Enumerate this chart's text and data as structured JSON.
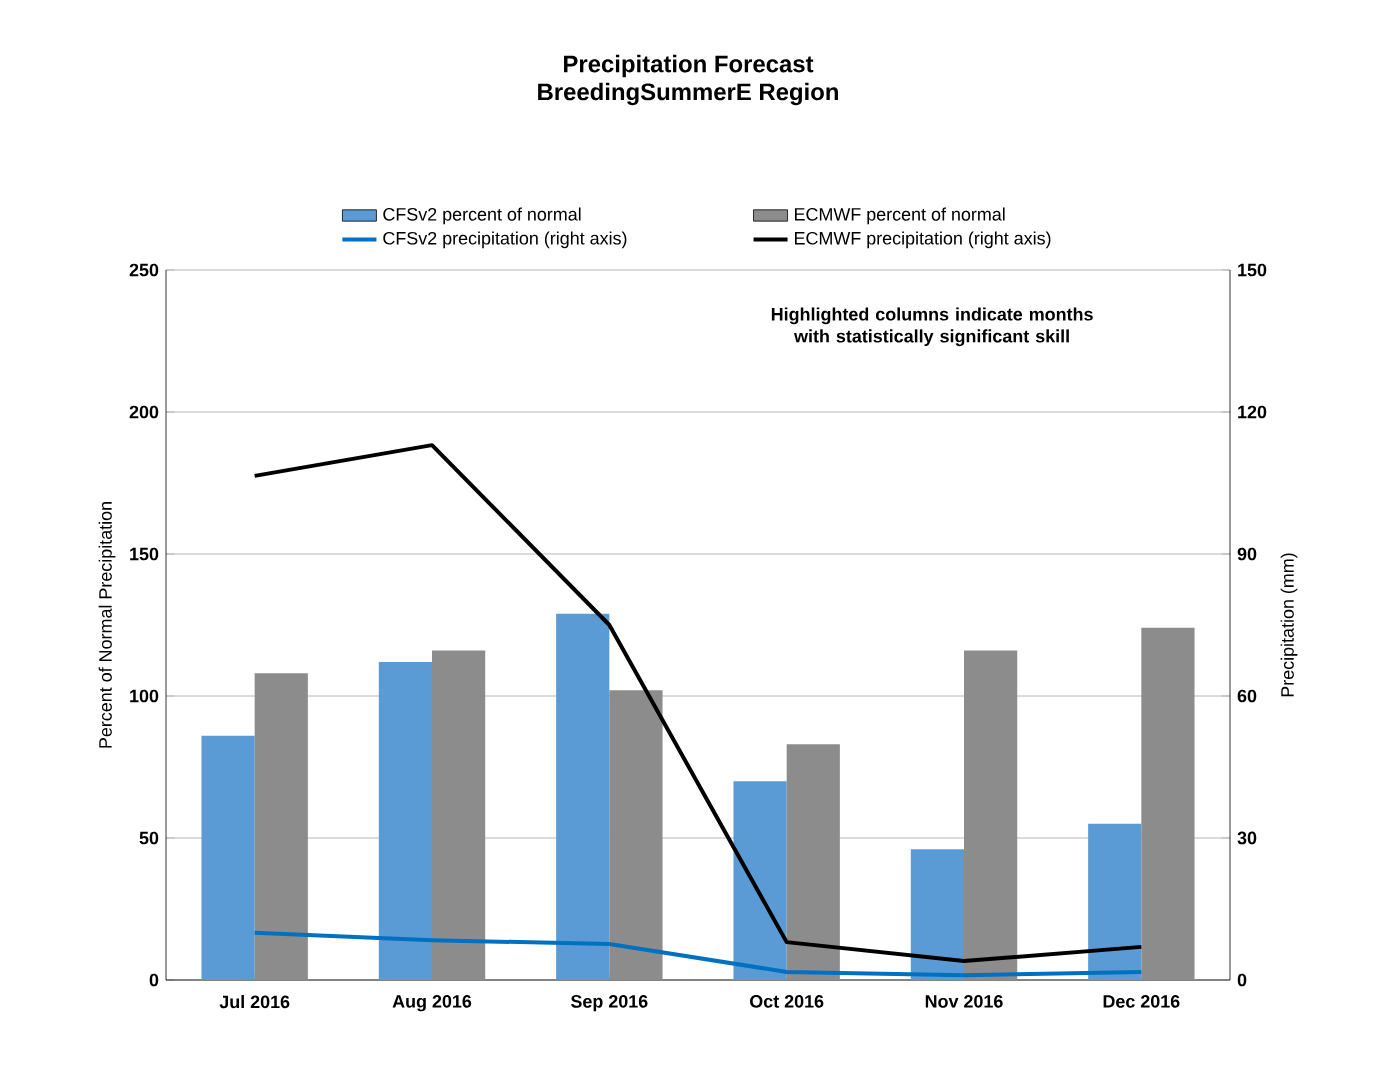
{
  "chart_data": {
    "type": "bar",
    "title": "Precipitation Forecast",
    "subtitle": "BreedingSummerE Region",
    "ylabel": "Percent of Normal Precipitation",
    "y2label": "Precipitation (mm)",
    "categories": [
      "Jul 2016",
      "Aug 2016",
      "Sep 2016",
      "Oct 2016",
      "Nov 2016",
      "Dec 2016"
    ],
    "series": [
      {
        "name": "CFSv2 percent of normal",
        "color": "#5b9bd5",
        "values": [
          86,
          112,
          129,
          70,
          46,
          55
        ]
      },
      {
        "name": "ECMWF percent of normal",
        "color": "#8c8c8c",
        "values": [
          108,
          116,
          102,
          83,
          116,
          124
        ]
      },
      {
        "name": "CFSv2 precipitation (right axis)",
        "type": "line",
        "axis": "y2",
        "color": "#0070c0",
        "values": [
          10,
          8.4,
          7.6,
          1.7,
          1,
          1.7
        ]
      },
      {
        "name": "ECMWF precipitation (right axis)",
        "type": "line",
        "axis": "y2",
        "color": "#000000",
        "values": [
          106.5,
          113,
          75,
          8,
          4,
          7
        ]
      }
    ],
    "ylim": [
      0,
      250
    ],
    "yticks": [
      0,
      50,
      100,
      150,
      200,
      250
    ],
    "y2lim": [
      0,
      150
    ],
    "y2ticks": [
      0,
      30,
      60,
      90,
      120,
      150
    ],
    "grid": "y",
    "legend": "top",
    "marker": "none",
    "annotations": [
      "Highlighted columns indicate months with statistically significant skill"
    ]
  }
}
